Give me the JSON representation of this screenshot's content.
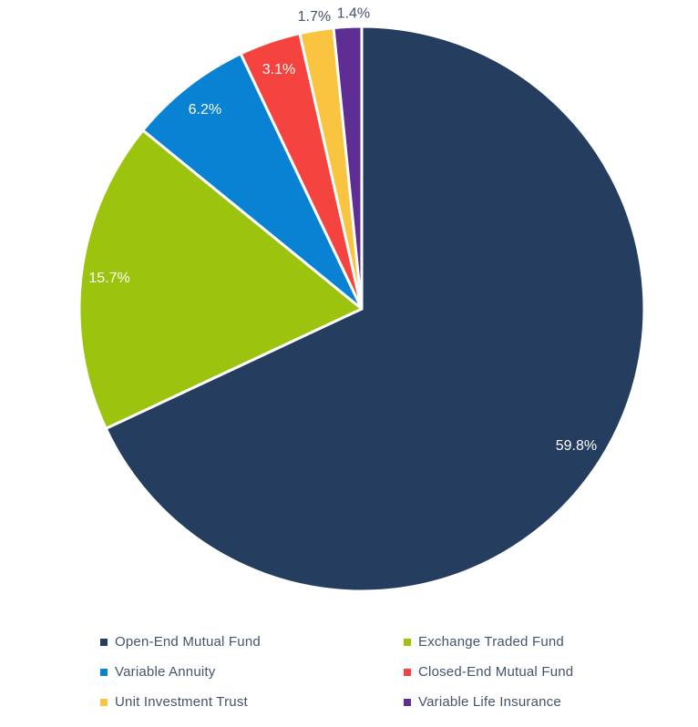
{
  "chart_data": {
    "type": "pie",
    "title": "",
    "unit": "%",
    "series": [
      {
        "name": "Open-End Mutual Fund",
        "value": 59.8,
        "label": "59.8%",
        "color": "#253E5F"
      },
      {
        "name": "Exchange Traded Fund",
        "value": 15.7,
        "label": "15.7%",
        "color": "#9CC30D"
      },
      {
        "name": "Variable Annuity",
        "value": 6.2,
        "label": "6.2%",
        "color": "#0982D4"
      },
      {
        "name": "Closed-End Mutual Fund",
        "value": 3.1,
        "label": "3.1%",
        "color": "#F5433F"
      },
      {
        "name": "Unit Investment Trust",
        "value": 1.7,
        "label": "1.7%",
        "color": "#F9C440"
      },
      {
        "name": "Variable Life Insurance",
        "value": 1.4,
        "label": "1.4%",
        "color": "#5E2E94"
      }
    ],
    "start_angle": 0,
    "direction": "clockwise",
    "legend_position": "bottom",
    "background": "#FFFFFF",
    "slice_border_color": "#FFFFFF",
    "legend_text_color": "#44546A",
    "label_colors": {
      "inside": "#FFFFFF",
      "outside": "#44546A"
    }
  }
}
